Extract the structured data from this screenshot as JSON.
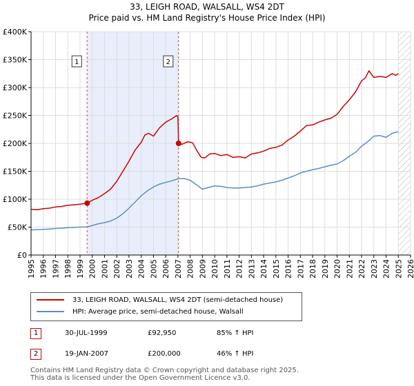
{
  "title": "33, LEIGH ROAD, WALSALL, WS4 2DT",
  "subtitle": "Price paid vs. HM Land Registry's House Price Index (HPI)",
  "legend": {
    "property": "33, LEIGH ROAD, WALSALL, WS4 2DT (semi-detached house)",
    "hpi": "HPI: Average price, semi-detached house, Walsall"
  },
  "sales": [
    {
      "label": "1",
      "date": "30-JUL-1999",
      "price": "£92,950",
      "delta": "85% ↑ HPI"
    },
    {
      "label": "2",
      "date": "19-JAN-2007",
      "price": "£200,000",
      "delta": "46% ↑ HPI"
    }
  ],
  "footer": {
    "line1": "Contains HM Land Registry data © Crown copyright and database right 2025.",
    "line2": "This data is licensed under the Open Government Licence v3.0."
  },
  "colors": {
    "property": "#cc0000",
    "hpi": "#5b8bc9",
    "shade": "#e8eefb",
    "grid": "#dddddd"
  },
  "chart_data": {
    "type": "line",
    "title": "33, LEIGH ROAD, WALSALL, WS4 2DT",
    "subtitle": "Price paid vs. HM Land Registry's House Price Index (HPI)",
    "xlabel": "",
    "ylabel": "",
    "xlim": [
      1995,
      2026
    ],
    "ylim": [
      0,
      400000
    ],
    "grid": true,
    "y_ticks": [
      0,
      50000,
      100000,
      150000,
      200000,
      250000,
      300000,
      350000,
      400000
    ],
    "y_tick_labels": [
      "£0",
      "£50K",
      "£100K",
      "£150K",
      "£200K",
      "£250K",
      "£300K",
      "£350K",
      "£400K"
    ],
    "x_ticks": [
      1995,
      1996,
      1997,
      1998,
      1999,
      2000,
      2001,
      2002,
      2003,
      2004,
      2005,
      2006,
      2007,
      2008,
      2009,
      2010,
      2011,
      2012,
      2013,
      2014,
      2015,
      2016,
      2017,
      2018,
      2019,
      2020,
      2021,
      2022,
      2023,
      2024,
      2025,
      2026
    ],
    "x_tick_labels": [
      "1995",
      "1996",
      "1997",
      "1998",
      "1999",
      "2000",
      "2001",
      "2002",
      "2003",
      "2004",
      "2005",
      "2006",
      "2007",
      "2008",
      "2009",
      "2010",
      "2011",
      "2012",
      "2013",
      "2014",
      "2015",
      "2016",
      "2017",
      "2018",
      "2019",
      "2020",
      "2021",
      "2022",
      "2023",
      "2024",
      "2025",
      "2026"
    ],
    "shaded_region": [
      1999.58,
      2007.05
    ],
    "future_region": [
      2025.0,
      2026.0
    ],
    "series": [
      {
        "name": "33, LEIGH ROAD, WALSALL, WS4 2DT (semi-detached house)",
        "color": "#cc0000",
        "x": [
          1995.0,
          1995.5,
          1996.0,
          1996.5,
          1997.0,
          1997.5,
          1998.0,
          1998.5,
          1999.0,
          1999.58,
          2000.0,
          2000.5,
          2001.0,
          2001.5,
          2002.0,
          2002.5,
          2003.0,
          2003.5,
          2004.0,
          2004.3,
          2004.6,
          2005.0,
          2005.5,
          2006.0,
          2006.5,
          2006.9,
          2007.0,
          2007.05,
          2007.3,
          2007.8,
          2008.2,
          2008.6,
          2008.9,
          2009.2,
          2009.6,
          2010.0,
          2010.5,
          2011.0,
          2011.5,
          2012.0,
          2012.5,
          2013.0,
          2013.5,
          2014.0,
          2014.5,
          2015.0,
          2015.5,
          2016.0,
          2016.5,
          2017.0,
          2017.5,
          2018.0,
          2018.5,
          2019.0,
          2019.5,
          2020.0,
          2020.5,
          2021.0,
          2021.5,
          2022.0,
          2022.3,
          2022.6,
          2023.0,
          2023.5,
          2024.0,
          2024.5,
          2024.8,
          2025.0
        ],
        "y": [
          82000,
          81000,
          83000,
          84000,
          86000,
          87000,
          89000,
          90000,
          91000,
          92950,
          98000,
          103000,
          110000,
          118000,
          132000,
          150000,
          168000,
          188000,
          202000,
          215000,
          218000,
          213000,
          228000,
          238000,
          244000,
          250000,
          247000,
          200000,
          198000,
          203000,
          201000,
          185000,
          175000,
          174000,
          181000,
          182000,
          178000,
          180000,
          175000,
          176000,
          174000,
          181000,
          183000,
          186000,
          191000,
          193000,
          197000,
          206000,
          213000,
          222000,
          232000,
          233000,
          238000,
          242000,
          245000,
          252000,
          266000,
          278000,
          292000,
          312000,
          317000,
          330000,
          318000,
          320000,
          318000,
          325000,
          322000,
          325000
        ]
      },
      {
        "name": "HPI: Average price, semi-detached house, Walsall",
        "color": "#5b8bc9",
        "x": [
          1995.0,
          1995.5,
          1996.0,
          1996.5,
          1997.0,
          1997.5,
          1998.0,
          1998.5,
          1999.0,
          1999.58,
          2000.0,
          2000.5,
          2001.0,
          2001.5,
          2002.0,
          2002.5,
          2003.0,
          2003.5,
          2004.0,
          2004.5,
          2005.0,
          2005.5,
          2006.0,
          2006.5,
          2007.05,
          2007.5,
          2008.0,
          2008.5,
          2009.0,
          2009.5,
          2010.0,
          2010.5,
          2011.0,
          2011.5,
          2012.0,
          2012.5,
          2013.0,
          2013.5,
          2014.0,
          2014.5,
          2015.0,
          2015.5,
          2016.0,
          2016.5,
          2017.0,
          2017.5,
          2018.0,
          2018.5,
          2019.0,
          2019.5,
          2020.0,
          2020.5,
          2021.0,
          2021.5,
          2022.0,
          2022.5,
          2023.0,
          2023.5,
          2024.0,
          2024.5,
          2025.0
        ],
        "y": [
          45000,
          45500,
          46000,
          46500,
          47500,
          48000,
          49000,
          49500,
          50000,
          50200,
          53000,
          56000,
          58000,
          61000,
          66000,
          74000,
          84000,
          95000,
          106000,
          115000,
          122000,
          127000,
          130000,
          133000,
          136800,
          137000,
          134000,
          126000,
          118000,
          121000,
          124000,
          123000,
          121000,
          120000,
          120000,
          121000,
          122000,
          124000,
          127000,
          129000,
          131000,
          134000,
          138000,
          142000,
          147000,
          150000,
          153000,
          155000,
          158000,
          161000,
          163000,
          169000,
          177000,
          184000,
          195000,
          203000,
          213000,
          214000,
          211000,
          218000,
          221000
        ]
      }
    ],
    "sale_points": [
      {
        "label": "1",
        "x": 1999.58,
        "y": 92950
      },
      {
        "label": "2",
        "x": 2007.05,
        "y": 200000
      }
    ]
  }
}
